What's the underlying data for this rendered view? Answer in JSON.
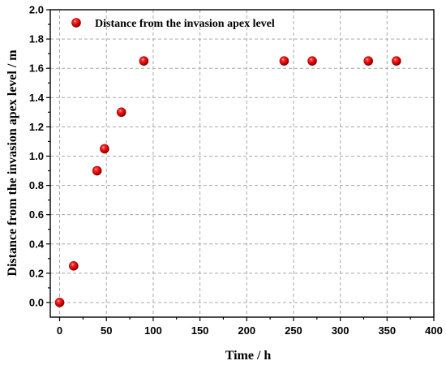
{
  "chart_data": {
    "type": "scatter",
    "title": "",
    "xlabel": "Time / h",
    "ylabel": "Distance from the invasion apex level / m",
    "xlim": [
      -10,
      400
    ],
    "ylim": [
      -0.1,
      2.0
    ],
    "xticks": [
      0,
      50,
      100,
      150,
      200,
      250,
      300,
      350,
      400
    ],
    "yticks": [
      0.0,
      0.2,
      0.4,
      0.6,
      0.8,
      1.0,
      1.2,
      1.4,
      1.6,
      1.8,
      2.0
    ],
    "xtick_labels": [
      "0",
      "50",
      "100",
      "150",
      "200",
      "250",
      "300",
      "350",
      "400"
    ],
    "ytick_labels": [
      "0.0",
      "0.2",
      "0.4",
      "0.6",
      "0.8",
      "1.0",
      "1.2",
      "1.4",
      "1.6",
      "1.8",
      "2.0"
    ],
    "grid": true,
    "legend_position": "top-left",
    "series": [
      {
        "name": "Distance from the invasion apex level",
        "color": "#e00000",
        "marker": "sphere",
        "x": [
          0,
          15,
          40,
          48,
          66,
          90,
          240,
          270,
          330,
          360
        ],
        "y": [
          0.0,
          0.25,
          0.9,
          1.05,
          1.3,
          1.65,
          1.65,
          1.65,
          1.65,
          1.65
        ]
      }
    ]
  }
}
